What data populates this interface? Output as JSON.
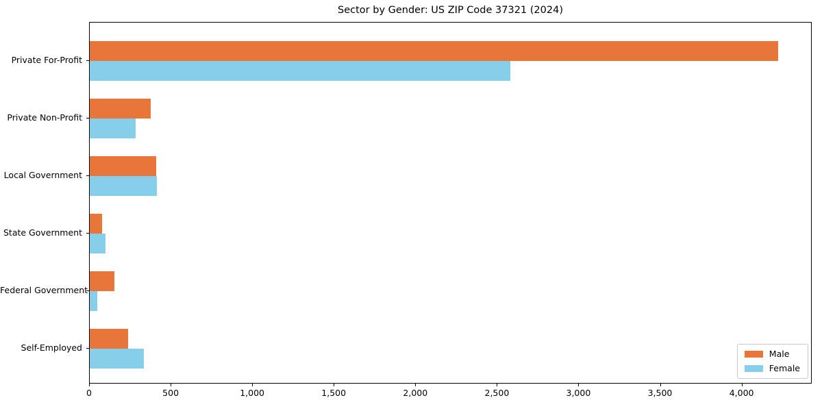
{
  "figure": {
    "background_color": "#ffffff",
    "text_color": "#000000"
  },
  "chart_data": {
    "type": "bar",
    "orientation": "horizontal",
    "title": "Sector by Gender: US ZIP Code 37321 (2024)",
    "xlabel": "",
    "ylabel": "",
    "grid": false,
    "categories": [
      "Private For-Profit",
      "Private Non-Profit",
      "Local Government",
      "State Government",
      "Federal Government",
      "Self-Employed"
    ],
    "series": [
      {
        "name": "Male",
        "color": "#e8763b",
        "values": [
          4220,
          375,
          405,
          75,
          150,
          235
        ]
      },
      {
        "name": "Female",
        "color": "#87ceeb",
        "values": [
          2580,
          280,
          410,
          95,
          45,
          330
        ]
      }
    ],
    "xlim": [
      0,
      4430
    ],
    "xticks": [
      {
        "value": 0,
        "label": "0"
      },
      {
        "value": 500,
        "label": "500"
      },
      {
        "value": 1000,
        "label": "1,000"
      },
      {
        "value": 1500,
        "label": "1,500"
      },
      {
        "value": 2000,
        "label": "2,000"
      },
      {
        "value": 2500,
        "label": "2,500"
      },
      {
        "value": 3000,
        "label": "3,000"
      },
      {
        "value": 3500,
        "label": "3,500"
      },
      {
        "value": 4000,
        "label": "4,000"
      }
    ],
    "legend": {
      "position": "lower right",
      "entries": [
        "Male",
        "Female"
      ]
    },
    "axis_color": "#000000",
    "legend_border_color": "#c9c9c9"
  }
}
